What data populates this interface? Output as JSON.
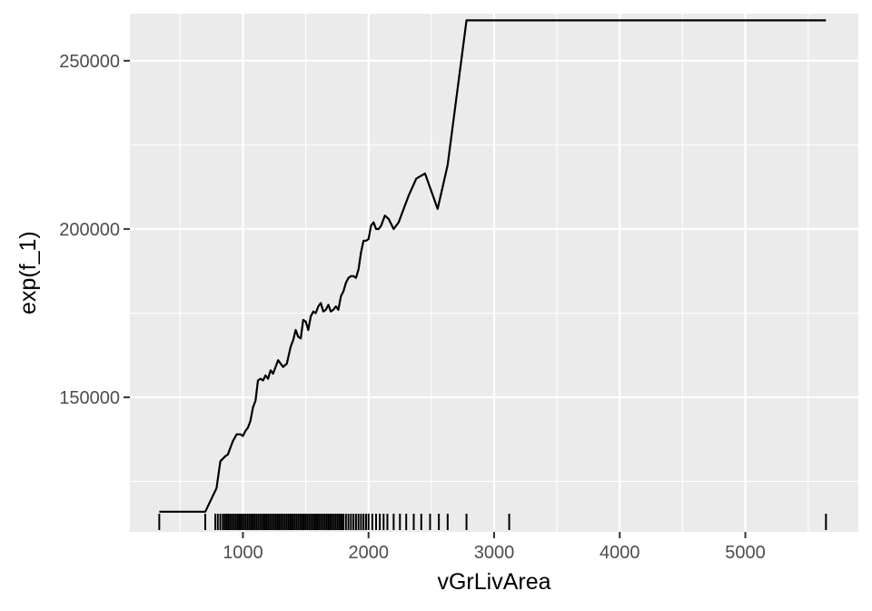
{
  "chart_data": {
    "type": "line",
    "title": "",
    "xlabel": "vGrLivArea",
    "ylabel": "exp(f_1)",
    "xlim": [
      100,
      5900
    ],
    "ylim": [
      110000,
      264000
    ],
    "x_ticks": [
      1000,
      2000,
      3000,
      4000,
      5000
    ],
    "x_tick_labels": [
      "1000",
      "2000",
      "3000",
      "4000",
      "5000"
    ],
    "y_ticks": [
      150000,
      200000,
      250000
    ],
    "y_tick_labels": [
      "150000",
      "200000",
      "250000"
    ],
    "grid": true,
    "legend": "none",
    "series": [
      {
        "x": [
          334,
          500,
          700,
          790,
          820,
          860,
          880,
          900,
          920,
          950,
          980,
          1000,
          1020,
          1040,
          1060,
          1080,
          1100,
          1120,
          1140,
          1160,
          1180,
          1200,
          1220,
          1240,
          1260,
          1280,
          1300,
          1320,
          1350,
          1380,
          1400,
          1420,
          1440,
          1460,
          1480,
          1500,
          1520,
          1540,
          1560,
          1580,
          1600,
          1620,
          1640,
          1660,
          1680,
          1700,
          1720,
          1740,
          1760,
          1780,
          1800,
          1820,
          1840,
          1860,
          1880,
          1900,
          1920,
          1940,
          1960,
          1980,
          2000,
          2020,
          2040,
          2060,
          2080,
          2100,
          2130,
          2160,
          2200,
          2240,
          2280,
          2320,
          2380,
          2450,
          2550,
          2630,
          2780,
          3000,
          5642
        ],
        "y": [
          116000,
          116000,
          116000,
          123000,
          131000,
          132500,
          133000,
          135000,
          137000,
          139000,
          139000,
          138500,
          140000,
          141000,
          143000,
          147000,
          149000,
          155000,
          155500,
          155000,
          156500,
          155500,
          158000,
          157000,
          159000,
          161000,
          160000,
          159000,
          160000,
          165000,
          167000,
          170000,
          168000,
          167500,
          173000,
          172500,
          170000,
          174000,
          175500,
          175000,
          177000,
          178000,
          175500,
          176000,
          177500,
          175500,
          176000,
          177000,
          176000,
          180000,
          181500,
          184000,
          185500,
          186000,
          186000,
          185500,
          188000,
          193000,
          196500,
          196500,
          197000,
          201000,
          202000,
          200000,
          200000,
          201000,
          204000,
          203000,
          200000,
          202000,
          206000,
          210000,
          215000,
          216500,
          206000,
          219000,
          262000,
          262000,
          262000
        ]
      }
    ],
    "rug_x": [
      334,
      700,
      780,
      800,
      820,
      840,
      855,
      870,
      885,
      900,
      915,
      930,
      945,
      960,
      975,
      990,
      1005,
      1020,
      1035,
      1050,
      1065,
      1080,
      1095,
      1110,
      1125,
      1140,
      1155,
      1170,
      1185,
      1200,
      1215,
      1230,
      1245,
      1260,
      1275,
      1290,
      1305,
      1320,
      1335,
      1350,
      1365,
      1380,
      1395,
      1410,
      1425,
      1440,
      1455,
      1470,
      1485,
      1500,
      1515,
      1530,
      1545,
      1560,
      1575,
      1590,
      1605,
      1620,
      1635,
      1650,
      1665,
      1680,
      1695,
      1710,
      1725,
      1740,
      1755,
      1770,
      1785,
      1800,
      1820,
      1840,
      1860,
      1880,
      1900,
      1920,
      1940,
      1960,
      1980,
      2000,
      2030,
      2060,
      2090,
      2120,
      2150,
      2200,
      2250,
      2300,
      2360,
      2420,
      2490,
      2560,
      2630,
      2780,
      3120,
      5642
    ]
  }
}
